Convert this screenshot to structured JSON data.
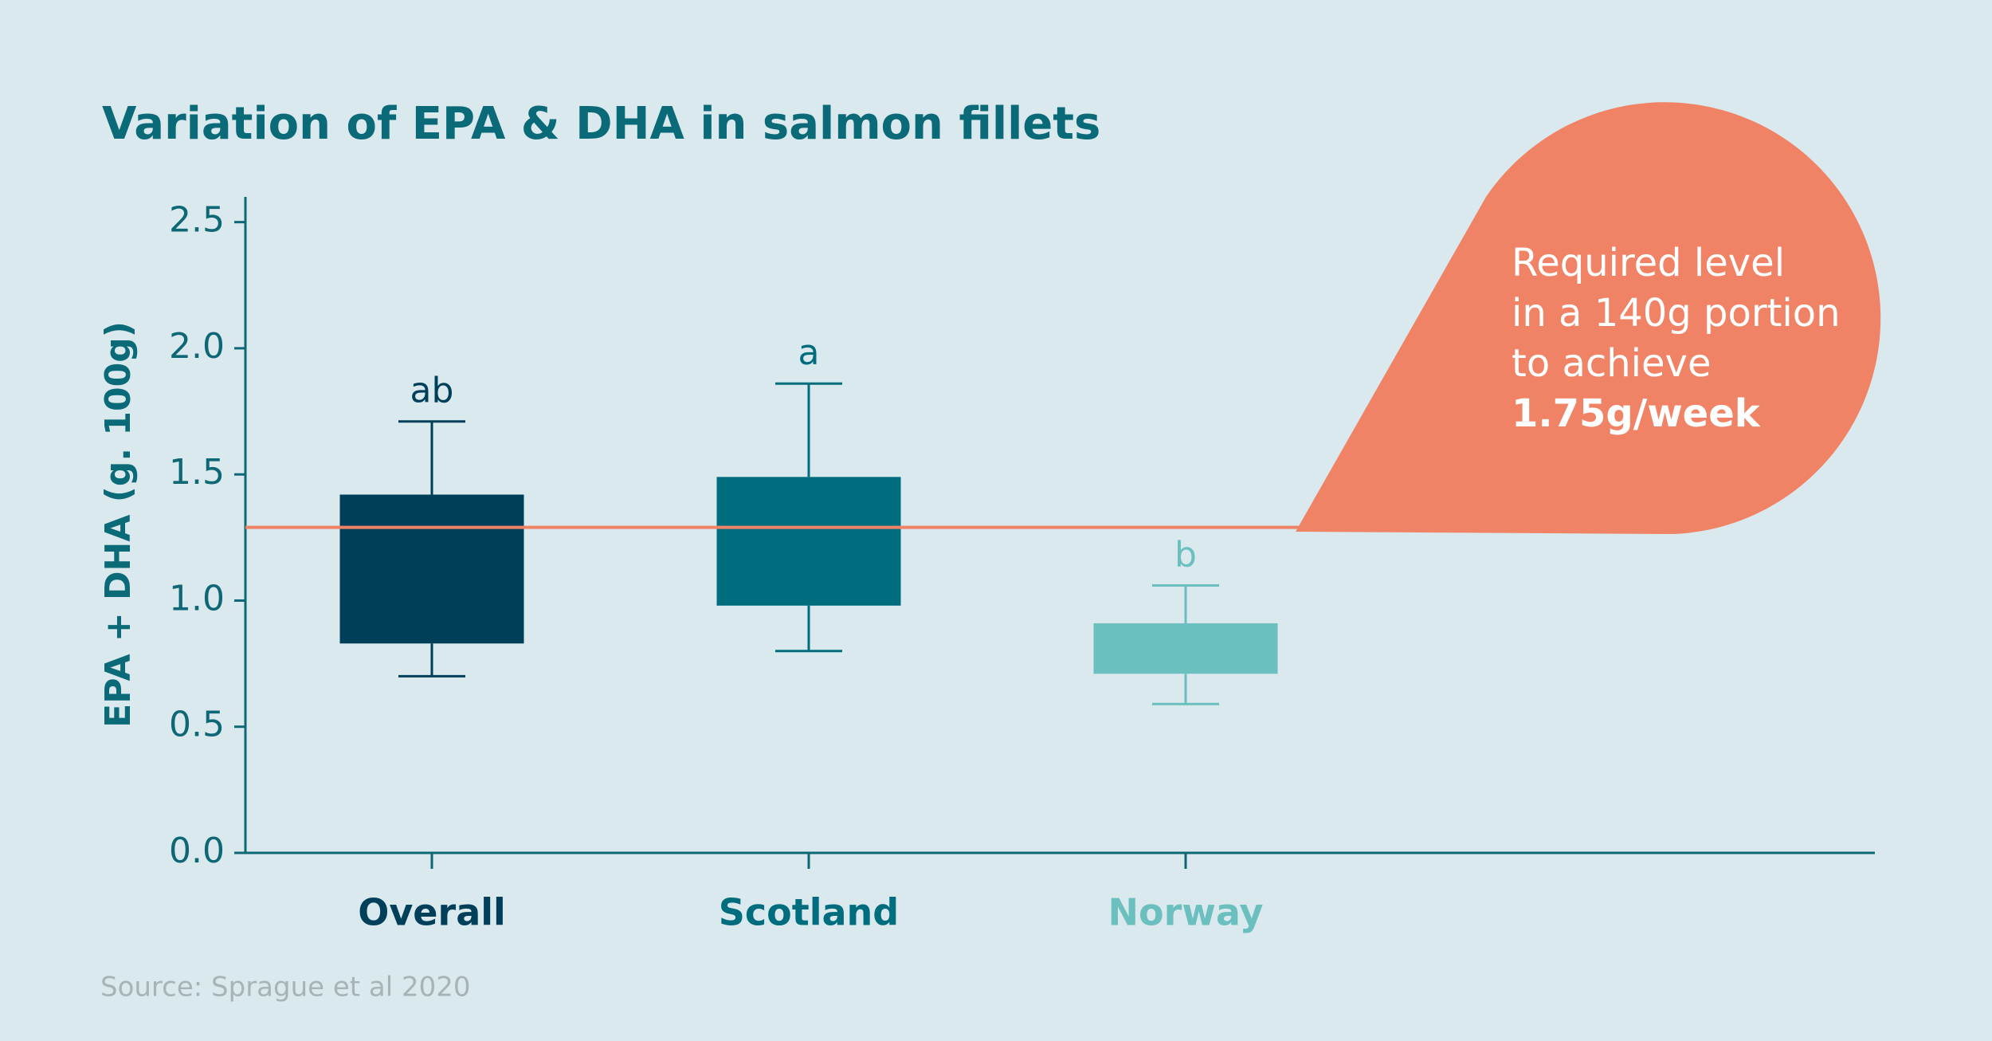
{
  "chart_data": {
    "type": "box",
    "title": "Variation of EPA & DHA in salmon fillets",
    "y_label": "EPA + DHA (g. 100g)",
    "categories": [
      "Overall",
      "Scotland",
      "Norway"
    ],
    "colors": [
      "#003f5a",
      "#006d7e",
      "#6bbfbe"
    ],
    "low": [
      0.7,
      0.8,
      0.59
    ],
    "q1": [
      0.83,
      0.98,
      0.71
    ],
    "q3": [
      1.42,
      1.49,
      0.91
    ],
    "high": [
      1.71,
      1.86,
      1.06
    ],
    "group_labels": [
      "ab",
      "a",
      "b"
    ],
    "reference_line": 1.29,
    "reference_color": "#f08366",
    "annotation": [
      "Required level",
      "in a 140g portion",
      "to achieve",
      "1.75g/week"
    ],
    "ylim": [
      0,
      2.6
    ],
    "yticks": [
      {
        "value": 0,
        "label": "0.0"
      },
      0.5,
      {
        "value": 1,
        "label": "1.0"
      },
      1.5,
      {
        "value": 2,
        "label": "2.0"
      },
      2.5
    ],
    "source": "Source: Sprague et al 2020"
  }
}
